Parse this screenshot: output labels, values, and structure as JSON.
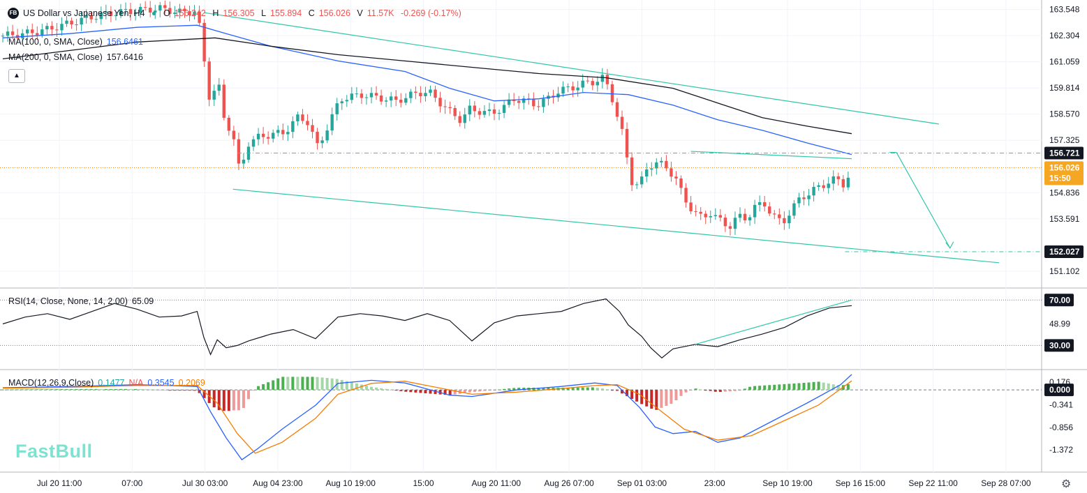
{
  "header": {
    "symbol_title": "US Dollar vs Japanese Yen, H4",
    "logo_text": "FB",
    "open_label": "O",
    "open": "156.242",
    "high_label": "H",
    "high": "156.305",
    "low_label": "L",
    "low": "155.894",
    "close_label": "C",
    "close": "156.026",
    "volume_label": "V",
    "volume": "11.57K",
    "change": "-0.269 (-0.17%)"
  },
  "indicators": {
    "ma100_label": "MA(100, 0, SMA, Close)",
    "ma100_value": "156.6461",
    "ma200_label": "MA(200, 0, SMA, Close)",
    "ma200_value": "157.6416",
    "collapse_icon": "chevron-up-icon",
    "rsi_label": "RSI(14, Close, None, 14, 2.00)",
    "rsi_value": "65.09",
    "macd_label": "MACD(12,26,9,Close)",
    "macd_hist": "0.1477",
    "macd_na": "N/A",
    "macd_line": "0.3545",
    "macd_signal": "0.2069"
  },
  "brand": "FastBull",
  "settings_icon": "gear-icon",
  "colors": {
    "up": "#26a69a",
    "down": "#ef5350",
    "ma100": "#2962ff",
    "ma200": "#131722",
    "trend": "#2ec7a8",
    "signal": "#f57c00",
    "macd": "#2962ff"
  },
  "chart_data": [
    {
      "type": "candlestick",
      "title": "US Dollar vs Japanese Yen, H4",
      "x_ticks": [
        "Jul 20 11:00",
        "07:00",
        "Jul 30 03:00",
        "Aug 04 23:00",
        "Aug 10 19:00",
        "15:00",
        "Aug 20 11:00",
        "Aug 26 07:00",
        "Sep 01 03:00",
        "23:00",
        "Sep 10 19:00",
        "Sep 16 15:00",
        "Sep 22 11:00",
        "Sep 28 07:00"
      ],
      "y_ticks": [
        163.548,
        162.304,
        161.059,
        159.814,
        158.57,
        157.325,
        154.836,
        153.591,
        151.102
      ],
      "ylim": [
        150.4,
        164.0
      ],
      "price_tags": [
        {
          "value": "156.721",
          "style": "dark"
        },
        {
          "value": "156.026",
          "time": "15:50",
          "style": "orange"
        },
        {
          "value": "152.027",
          "style": "dark"
        }
      ],
      "close_path": [
        [
          0,
          162.3
        ],
        [
          1,
          162.4
        ],
        [
          2,
          162.6
        ],
        [
          3,
          162.9
        ],
        [
          4,
          163.2
        ],
        [
          5,
          163.4
        ],
        [
          6,
          163.5
        ],
        [
          7,
          163.6
        ],
        [
          8,
          163.4
        ],
        [
          8.7,
          163.5
        ],
        [
          9,
          161.2
        ],
        [
          9.3,
          159.0
        ],
        [
          9.6,
          160.3
        ],
        [
          9.9,
          158.4
        ],
        [
          10.3,
          157.6
        ],
        [
          10.6,
          155.8
        ],
        [
          11,
          157.2
        ],
        [
          11.5,
          157.5
        ],
        [
          12,
          157.6
        ],
        [
          12.6,
          157.7
        ],
        [
          13.2,
          158.4
        ],
        [
          13.6,
          158.3
        ],
        [
          14.1,
          157.0
        ],
        [
          14.6,
          158.1
        ],
        [
          15.1,
          159.3
        ],
        [
          15.6,
          159.4
        ],
        [
          16.1,
          159.5
        ],
        [
          16.6,
          159.4
        ],
        [
          17.1,
          159.3
        ],
        [
          17.6,
          159.2
        ],
        [
          18.1,
          159.4
        ],
        [
          18.6,
          159.6
        ],
        [
          19.1,
          159.6
        ],
        [
          19.6,
          159.1
        ],
        [
          20.1,
          158.6
        ],
        [
          20.5,
          158.3
        ],
        [
          20.9,
          158.8
        ],
        [
          21.4,
          158.7
        ],
        [
          21.9,
          158.6
        ],
        [
          22.4,
          158.9
        ],
        [
          22.9,
          159.3
        ],
        [
          23.4,
          159.2
        ],
        [
          23.9,
          159.0
        ],
        [
          24.4,
          159.3
        ],
        [
          24.9,
          159.7
        ],
        [
          25.4,
          159.8
        ],
        [
          25.9,
          160.0
        ],
        [
          26.4,
          160.1
        ],
        [
          26.9,
          160.3
        ],
        [
          27.2,
          159.6
        ],
        [
          27.5,
          158.5
        ],
        [
          27.8,
          157.4
        ],
        [
          28.1,
          155.4
        ],
        [
          28.5,
          155.2
        ],
        [
          28.9,
          156.1
        ],
        [
          29.3,
          156.3
        ],
        [
          29.7,
          156.0
        ],
        [
          30.1,
          155.6
        ],
        [
          30.5,
          154.5
        ],
        [
          30.9,
          154.0
        ],
        [
          31.3,
          153.6
        ],
        [
          31.7,
          153.9
        ],
        [
          32.1,
          153.5
        ],
        [
          32.5,
          153.2
        ],
        [
          32.9,
          153.7
        ],
        [
          33.3,
          153.6
        ],
        [
          33.7,
          154.2
        ],
        [
          34.1,
          154.3
        ],
        [
          34.5,
          153.7
        ],
        [
          34.9,
          153.4
        ],
        [
          35.3,
          154.0
        ],
        [
          35.7,
          154.6
        ],
        [
          36.1,
          154.8
        ],
        [
          36.5,
          155.1
        ],
        [
          36.9,
          155.3
        ],
        [
          37.3,
          155.5
        ],
        [
          37.7,
          155.2
        ],
        [
          38.0,
          156.03
        ]
      ],
      "ma100_path": [
        [
          0,
          162.2
        ],
        [
          3,
          162.4
        ],
        [
          6,
          162.7
        ],
        [
          8.7,
          162.8
        ],
        [
          10,
          162.4
        ],
        [
          12,
          161.8
        ],
        [
          15,
          161.1
        ],
        [
          18,
          160.6
        ],
        [
          20,
          159.8
        ],
        [
          22,
          159.2
        ],
        [
          24,
          159.3
        ],
        [
          26,
          159.6
        ],
        [
          28,
          159.5
        ],
        [
          30,
          159.0
        ],
        [
          32,
          158.3
        ],
        [
          34,
          157.8
        ],
        [
          36,
          157.2
        ],
        [
          38,
          156.65
        ]
      ],
      "ma200_path": [
        [
          0,
          161.2
        ],
        [
          3,
          161.6
        ],
        [
          6,
          162.0
        ],
        [
          9.5,
          162.2
        ],
        [
          12,
          161.8
        ],
        [
          15,
          161.4
        ],
        [
          18,
          161.1
        ],
        [
          21,
          160.8
        ],
        [
          24,
          160.5
        ],
        [
          27,
          160.3
        ],
        [
          30,
          159.8
        ],
        [
          32,
          159.1
        ],
        [
          34,
          158.4
        ],
        [
          36,
          158.0
        ],
        [
          38,
          157.64
        ]
      ],
      "trend_lines": [
        {
          "from": [
            9.0,
            163.4
          ],
          "to": [
            41.9,
            158.1
          ]
        },
        {
          "from": [
            10.3,
            155.0
          ],
          "to": [
            44.6,
            151.5
          ]
        },
        {
          "from": [
            30.8,
            156.8
          ],
          "to": [
            38.0,
            156.45
          ]
        }
      ],
      "horizontal_levels": [
        156.721,
        156.026,
        152.027
      ],
      "projection_arrow": {
        "from": [
          40.0,
          156.75
        ],
        "to": [
          42.4,
          152.2
        ]
      }
    },
    {
      "type": "line",
      "title": "RSI(14, Close, None, 14, 2.00)",
      "y_ticks": [
        70.0,
        48.99,
        30.0
      ],
      "ylim": [
        10,
        80
      ],
      "values": [
        [
          0,
          49
        ],
        [
          1,
          55
        ],
        [
          2,
          58
        ],
        [
          3,
          53
        ],
        [
          4,
          60
        ],
        [
          5,
          67
        ],
        [
          6,
          62
        ],
        [
          7,
          55
        ],
        [
          8,
          56
        ],
        [
          8.7,
          60
        ],
        [
          9,
          37
        ],
        [
          9.3,
          22
        ],
        [
          9.6,
          35
        ],
        [
          10,
          28
        ],
        [
          10.5,
          30
        ],
        [
          11,
          34
        ],
        [
          12,
          40
        ],
        [
          13,
          44
        ],
        [
          14,
          36
        ],
        [
          15,
          55
        ],
        [
          16,
          58
        ],
        [
          17,
          56
        ],
        [
          18,
          52
        ],
        [
          19,
          58
        ],
        [
          20,
          52
        ],
        [
          21,
          34
        ],
        [
          22,
          50
        ],
        [
          23,
          56
        ],
        [
          24,
          58
        ],
        [
          25,
          60
        ],
        [
          26,
          67
        ],
        [
          27,
          71
        ],
        [
          27.6,
          60
        ],
        [
          28,
          48
        ],
        [
          28.6,
          38
        ],
        [
          29,
          28
        ],
        [
          29.5,
          19
        ],
        [
          30,
          27
        ],
        [
          31,
          31
        ],
        [
          32,
          29
        ],
        [
          33,
          35
        ],
        [
          34,
          40
        ],
        [
          35,
          46
        ],
        [
          36,
          56
        ],
        [
          37,
          63
        ],
        [
          38,
          65.09
        ]
      ],
      "trend_line": {
        "from": [
          31.0,
          31
        ],
        "to": [
          38.0,
          70
        ]
      }
    },
    {
      "type": "macd",
      "title": "MACD(12,26,9,Close)",
      "y_ticks": [
        0.176,
        0.0,
        -0.341,
        -0.856,
        -1.372
      ],
      "ylim": [
        -1.85,
        0.45
      ],
      "macd_line": [
        [
          0,
          0.05
        ],
        [
          3,
          0.08
        ],
        [
          6,
          0.12
        ],
        [
          8.7,
          0.08
        ],
        [
          9.3,
          -0.5
        ],
        [
          10,
          -1.1
        ],
        [
          10.7,
          -1.6
        ],
        [
          11.4,
          -1.35
        ],
        [
          12.5,
          -0.9
        ],
        [
          14,
          -0.35
        ],
        [
          15,
          0.15
        ],
        [
          16.5,
          0.22
        ],
        [
          18,
          0.16
        ],
        [
          20,
          -0.12
        ],
        [
          21,
          -0.15
        ],
        [
          23,
          0.0
        ],
        [
          25,
          0.08
        ],
        [
          26.5,
          0.16
        ],
        [
          27.5,
          0.1
        ],
        [
          28.5,
          -0.4
        ],
        [
          29.2,
          -0.85
        ],
        [
          30,
          -1.0
        ],
        [
          31,
          -0.95
        ],
        [
          32,
          -1.2
        ],
        [
          33,
          -1.1
        ],
        [
          34.5,
          -0.7
        ],
        [
          36,
          -0.3
        ],
        [
          37.5,
          0.12
        ],
        [
          38,
          0.3545
        ]
      ],
      "signal_line": [
        [
          0,
          0.04
        ],
        [
          3,
          0.06
        ],
        [
          6,
          0.1
        ],
        [
          8.7,
          0.1
        ],
        [
          9.6,
          -0.3
        ],
        [
          10.5,
          -1.0
        ],
        [
          11.3,
          -1.45
        ],
        [
          12.5,
          -1.2
        ],
        [
          14,
          -0.65
        ],
        [
          15,
          -0.1
        ],
        [
          16.5,
          0.15
        ],
        [
          18,
          0.2
        ],
        [
          20,
          0.0
        ],
        [
          21,
          -0.1
        ],
        [
          23,
          -0.05
        ],
        [
          25,
          0.03
        ],
        [
          26.5,
          0.1
        ],
        [
          27.5,
          0.12
        ],
        [
          28.5,
          -0.1
        ],
        [
          29.5,
          -0.5
        ],
        [
          30.5,
          -0.9
        ],
        [
          32,
          -1.15
        ],
        [
          33.5,
          -1.05
        ],
        [
          35,
          -0.7
        ],
        [
          36.5,
          -0.35
        ],
        [
          38,
          0.2069
        ]
      ]
    }
  ]
}
